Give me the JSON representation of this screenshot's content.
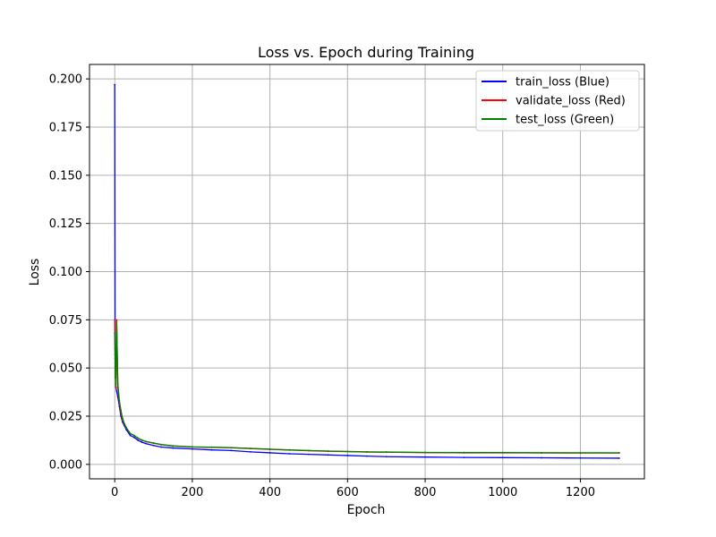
{
  "chart_data": {
    "type": "line",
    "title": "Loss vs. Epoch during Training",
    "xlabel": "Epoch",
    "ylabel": "Loss",
    "xlim": [
      -65,
      1365
    ],
    "ylim": [
      -0.0075,
      0.2075
    ],
    "xticks": [
      0,
      200,
      400,
      600,
      800,
      1000,
      1200
    ],
    "xtick_labels": [
      "0",
      "200",
      "400",
      "600",
      "800",
      "1000",
      "1200"
    ],
    "yticks": [
      0.0,
      0.025,
      0.05,
      0.075,
      0.1,
      0.125,
      0.15,
      0.175,
      0.2
    ],
    "ytick_labels": [
      "0.000",
      "0.025",
      "0.050",
      "0.075",
      "0.100",
      "0.125",
      "0.150",
      "0.175",
      "0.200"
    ],
    "grid": true,
    "legend_position": "top-right",
    "series": [
      {
        "name": "train_loss (Blue)",
        "color": "#0000ff",
        "x": [
          0,
          1,
          2,
          3,
          5,
          8,
          12,
          16,
          20,
          25,
          30,
          40,
          50,
          60,
          70,
          80,
          100,
          120,
          150,
          200,
          250,
          300,
          350,
          400,
          450,
          500,
          550,
          600,
          650,
          700,
          800,
          900,
          1000,
          1100,
          1200,
          1300
        ],
        "y": [
          0.197,
          0.06,
          0.045,
          0.04,
          0.038,
          0.035,
          0.03,
          0.025,
          0.022,
          0.02,
          0.018,
          0.015,
          0.014,
          0.0125,
          0.0115,
          0.0108,
          0.0098,
          0.009,
          0.0085,
          0.008,
          0.0075,
          0.0072,
          0.0065,
          0.006,
          0.0055,
          0.0052,
          0.0049,
          0.0046,
          0.0043,
          0.004,
          0.0038,
          0.0036,
          0.0035,
          0.0034,
          0.0033,
          0.0032
        ]
      },
      {
        "name": "validate_loss (Red)",
        "color": "#ff0000",
        "x": [
          0,
          1,
          2,
          3,
          5,
          8,
          12,
          16,
          20,
          25,
          30,
          40,
          50,
          60,
          70,
          80,
          100,
          120,
          150,
          200,
          250,
          300,
          350,
          400,
          450,
          500,
          550,
          600,
          650,
          700,
          800,
          900,
          1000,
          1100,
          1200,
          1300
        ],
        "y": [
          0.075,
          0.055,
          0.045,
          0.04,
          0.075,
          0.04,
          0.032,
          0.027,
          0.023,
          0.021,
          0.019,
          0.016,
          0.015,
          0.0135,
          0.0125,
          0.0118,
          0.011,
          0.0102,
          0.0095,
          0.009,
          0.0088,
          0.0086,
          0.0082,
          0.0078,
          0.0074,
          0.0071,
          0.0068,
          0.0066,
          0.0064,
          0.0063,
          0.0061,
          0.006,
          0.006,
          0.006,
          0.0059,
          0.0059
        ]
      },
      {
        "name": "test_loss (Green)",
        "color": "#008000",
        "x": [
          0,
          1,
          2,
          3,
          5,
          8,
          12,
          16,
          20,
          25,
          30,
          40,
          50,
          60,
          70,
          80,
          100,
          120,
          150,
          200,
          250,
          300,
          350,
          400,
          450,
          500,
          550,
          600,
          650,
          700,
          800,
          900,
          1000,
          1100,
          1200,
          1300
        ],
        "y": [
          0.068,
          0.057,
          0.046,
          0.041,
          0.074,
          0.042,
          0.033,
          0.028,
          0.024,
          0.021,
          0.019,
          0.016,
          0.015,
          0.0136,
          0.0126,
          0.0119,
          0.0111,
          0.0103,
          0.0096,
          0.0091,
          0.0089,
          0.0087,
          0.0083,
          0.0079,
          0.0075,
          0.0072,
          0.0069,
          0.0067,
          0.0065,
          0.0064,
          0.0062,
          0.0061,
          0.0061,
          0.006,
          0.006,
          0.006
        ]
      }
    ]
  }
}
